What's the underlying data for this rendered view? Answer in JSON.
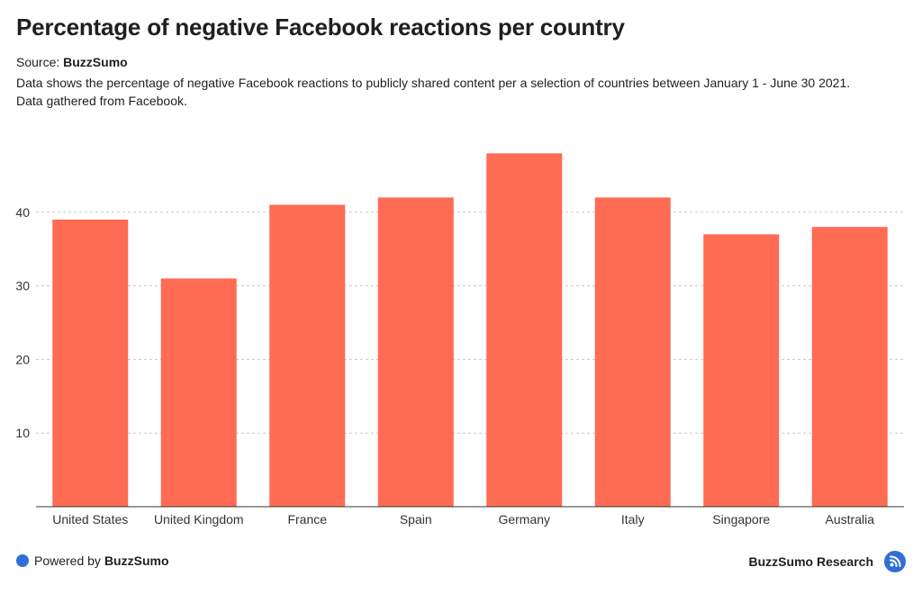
{
  "header": {
    "title": "Percentage of negative Facebook reactions per country",
    "source_label": "Source:",
    "source_name": "BuzzSumo",
    "description_line1": "Data shows the percentage of negative Facebook reactions to publicly shared content per a selection of countries between January 1 - June 30 2021.",
    "description_line2": "Data gathered from Facebook."
  },
  "chart_data": {
    "type": "bar",
    "categories": [
      "United States",
      "United Kingdom",
      "France",
      "Spain",
      "Germany",
      "Italy",
      "Singapore",
      "Australia"
    ],
    "values": [
      39,
      31,
      41,
      42,
      48,
      42,
      37,
      38
    ],
    "yticks": [
      10,
      20,
      30,
      40
    ],
    "ylim": [
      0,
      50
    ],
    "grid": true,
    "title": "",
    "xlabel": "",
    "ylabel": "",
    "bar_color": "#ff6b53"
  },
  "footer": {
    "powered_label": "Powered by",
    "powered_brand": "BuzzSumo",
    "right_label": "BuzzSumo Research",
    "accent_color": "#2f6fd6",
    "icon": "rss-icon"
  }
}
